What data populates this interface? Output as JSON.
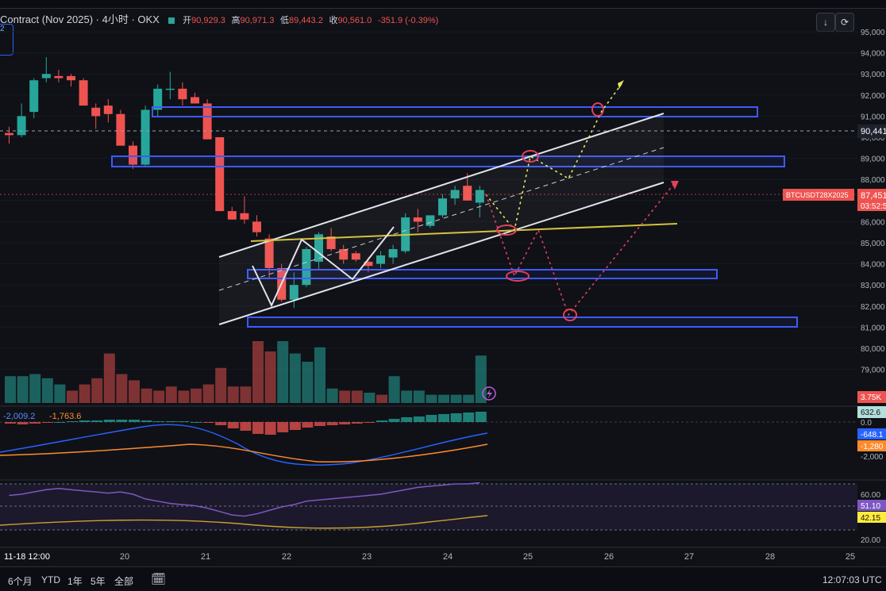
{
  "header": {
    "title": "Contract (Nov 2025) · 4小时 · OKX",
    "open_label": "开",
    "open": "90,929.3",
    "high_label": "高",
    "high": "90,971.3",
    "low_label": "低",
    "low": "89,443.2",
    "close_label": "收",
    "close": "90,561.0",
    "change": "-351.9 (-0.39%)",
    "left_tag": "2"
  },
  "price_axis": {
    "ticks": [
      "95,000",
      "94,000",
      "93,000",
      "92,000",
      "91,000",
      "90,000",
      "89,000",
      "88,000",
      "87,000",
      "86,000",
      "85,000",
      "84,000",
      "83,000",
      "82,000",
      "81,000",
      "80,000",
      "79,000"
    ],
    "marker_dashed": "90,441",
    "symbol_label": "BTCUSDT28X2025",
    "last_price": "87,451",
    "countdown": "03:52:5",
    "volume_label": "3.75K"
  },
  "macd": {
    "legend_a": "-2,009.2",
    "legend_b": "-1,763.6",
    "histogram_label": "632.6",
    "zero_label": "0.0",
    "signal_label": "-648.1",
    "macd_label": "-1,280",
    "bottom_tick": "-2,000"
  },
  "rsi": {
    "ticks": [
      "60.00",
      "20.00"
    ],
    "value_a": "51.10",
    "value_b": "42.15"
  },
  "time_axis": {
    "labels": [
      "11-18  12:00",
      "20",
      "21",
      "22",
      "23",
      "24",
      "25",
      "26",
      "27",
      "28",
      "25"
    ]
  },
  "bottom_bar": {
    "ranges": [
      "6个月",
      "YTD",
      "1年",
      "5年",
      "全部"
    ],
    "clock": "12:07:03 UTC"
  },
  "colors": {
    "up": "#26a69a",
    "down": "#ef5350",
    "zone_border": "#3d5afe",
    "channel": "#e0e3eb",
    "yellow_line": "#d4c23a",
    "projection_up": "#e6e65a",
    "projection_down": "#e0405a"
  },
  "icons": {
    "download": "download-icon",
    "refresh": "refresh-icon",
    "lightning": "lightning-icon",
    "calendar": "calendar-icon"
  },
  "chart_data": [
    {
      "type": "candlestick",
      "series": [
        {
          "o": 90.2,
          "h": 90.5,
          "l": 89.7,
          "c": 90.1
        },
        {
          "o": 90.1,
          "h": 91.6,
          "l": 90.0,
          "c": 91.0
        },
        {
          "o": 91.2,
          "h": 92.8,
          "l": 90.9,
          "c": 92.7
        },
        {
          "o": 92.8,
          "h": 93.8,
          "l": 92.6,
          "c": 93.0
        },
        {
          "o": 92.9,
          "h": 93.2,
          "l": 92.6,
          "c": 92.8
        },
        {
          "o": 92.9,
          "h": 93.0,
          "l": 92.4,
          "c": 92.7
        },
        {
          "o": 92.7,
          "h": 92.8,
          "l": 91.5,
          "c": 91.5
        },
        {
          "o": 91.4,
          "h": 91.6,
          "l": 90.4,
          "c": 91.0
        },
        {
          "o": 91.5,
          "h": 91.8,
          "l": 90.7,
          "c": 91.1
        },
        {
          "o": 91.1,
          "h": 91.3,
          "l": 89.7,
          "c": 89.6
        },
        {
          "o": 89.6,
          "h": 89.8,
          "l": 88.5,
          "c": 88.7
        },
        {
          "o": 88.7,
          "h": 91.5,
          "l": 88.6,
          "c": 91.3
        },
        {
          "o": 91.3,
          "h": 92.5,
          "l": 91.0,
          "c": 92.3
        },
        {
          "o": 92.3,
          "h": 93.1,
          "l": 91.8,
          "c": 92.3
        },
        {
          "o": 92.3,
          "h": 92.6,
          "l": 91.5,
          "c": 91.8
        },
        {
          "o": 91.9,
          "h": 92.1,
          "l": 91.6,
          "c": 91.6
        },
        {
          "o": 91.6,
          "h": 91.8,
          "l": 89.9,
          "c": 89.9
        },
        {
          "o": 90.0,
          "h": 90.0,
          "l": 86.6,
          "c": 86.5
        },
        {
          "o": 86.5,
          "h": 86.7,
          "l": 86.1,
          "c": 86.1
        },
        {
          "o": 86.4,
          "h": 87.2,
          "l": 85.9,
          "c": 86.1
        },
        {
          "o": 86.0,
          "h": 86.3,
          "l": 85.3,
          "c": 85.5
        },
        {
          "o": 85.2,
          "h": 85.4,
          "l": 83.3,
          "c": 83.8
        },
        {
          "o": 83.8,
          "h": 84.0,
          "l": 82.2,
          "c": 82.3
        },
        {
          "o": 82.3,
          "h": 83.6,
          "l": 81.9,
          "c": 83.0
        },
        {
          "o": 83.0,
          "h": 84.8,
          "l": 82.9,
          "c": 84.7
        },
        {
          "o": 84.1,
          "h": 85.5,
          "l": 83.7,
          "c": 85.4
        },
        {
          "o": 85.3,
          "h": 85.7,
          "l": 84.6,
          "c": 84.7
        },
        {
          "o": 84.7,
          "h": 84.9,
          "l": 84.0,
          "c": 84.2
        },
        {
          "o": 84.5,
          "h": 84.6,
          "l": 84.1,
          "c": 84.2
        },
        {
          "o": 84.1,
          "h": 84.3,
          "l": 83.6,
          "c": 83.9
        },
        {
          "o": 84.0,
          "h": 84.6,
          "l": 83.8,
          "c": 84.4
        },
        {
          "o": 84.3,
          "h": 84.9,
          "l": 84.0,
          "c": 84.7
        },
        {
          "o": 84.6,
          "h": 86.4,
          "l": 84.5,
          "c": 86.2
        },
        {
          "o": 86.2,
          "h": 86.6,
          "l": 85.5,
          "c": 86.0
        },
        {
          "o": 85.8,
          "h": 86.3,
          "l": 85.7,
          "c": 86.3
        },
        {
          "o": 86.3,
          "h": 87.3,
          "l": 86.2,
          "c": 87.1
        },
        {
          "o": 87.1,
          "h": 87.7,
          "l": 86.8,
          "c": 87.5
        },
        {
          "o": 87.7,
          "h": 88.3,
          "l": 87.0,
          "c": 87.0
        },
        {
          "o": 86.9,
          "h": 87.7,
          "l": 86.2,
          "c": 87.5
        }
      ],
      "volume": [
        [
          1.3,
          "up"
        ],
        [
          1.3,
          "up"
        ],
        [
          1.4,
          "up"
        ],
        [
          1.2,
          "up"
        ],
        [
          0.9,
          "up"
        ],
        [
          0.6,
          "down"
        ],
        [
          0.9,
          "down"
        ],
        [
          1.2,
          "down"
        ],
        [
          2.4,
          "down"
        ],
        [
          1.4,
          "down"
        ],
        [
          1.1,
          "down"
        ],
        [
          0.7,
          "down"
        ],
        [
          0.6,
          "down"
        ],
        [
          0.8,
          "down"
        ],
        [
          0.6,
          "down"
        ],
        [
          0.7,
          "down"
        ],
        [
          0.9,
          "down"
        ],
        [
          1.7,
          "down"
        ],
        [
          0.8,
          "down"
        ],
        [
          0.8,
          "down"
        ],
        [
          3.0,
          "down"
        ],
        [
          2.5,
          "down"
        ],
        [
          3.0,
          "up"
        ],
        [
          2.4,
          "up"
        ],
        [
          2.0,
          "up"
        ],
        [
          2.7,
          "up"
        ],
        [
          0.7,
          "up"
        ],
        [
          0.6,
          "down"
        ],
        [
          0.6,
          "down"
        ],
        [
          0.5,
          "up"
        ],
        [
          0.4,
          "down"
        ],
        [
          1.3,
          "up"
        ],
        [
          0.6,
          "up"
        ],
        [
          0.6,
          "up"
        ],
        [
          0.4,
          "up"
        ],
        [
          0.4,
          "up"
        ],
        [
          0.4,
          "up"
        ],
        [
          0.4,
          "up"
        ],
        [
          2.3,
          "up"
        ]
      ],
      "ylim": [
        78.5,
        95.0
      ],
      "title": "Contract (Nov 2025) · 4小时 · OKX"
    },
    {
      "type": "bar",
      "name": "MACD histogram",
      "values": [
        -0.2,
        -0.3,
        -0.2,
        -0.1,
        0,
        0.1,
        0.2,
        0.2,
        0.3,
        0.3,
        0.3,
        0.2,
        0.1,
        0.1,
        0.1,
        0,
        -0.1,
        -0.4,
        -0.8,
        -1.1,
        -1.5,
        -1.6,
        -1.3,
        -1.0,
        -0.7,
        -0.5,
        -0.4,
        -0.3,
        -0.2,
        -0.1,
        0.2,
        0.4,
        0.6,
        0.7,
        0.9,
        1.0,
        1.1,
        1.2,
        1.3
      ]
    },
    {
      "type": "line",
      "name": "RSI",
      "values": [
        50,
        51,
        53,
        55,
        56,
        55,
        54,
        53,
        52,
        53,
        51,
        47,
        45,
        43,
        42,
        41,
        39,
        36,
        33,
        32,
        34,
        37,
        40,
        42,
        45,
        46,
        47,
        48,
        49,
        50,
        51,
        53,
        55,
        57,
        58,
        59,
        60,
        60,
        61
      ]
    }
  ]
}
